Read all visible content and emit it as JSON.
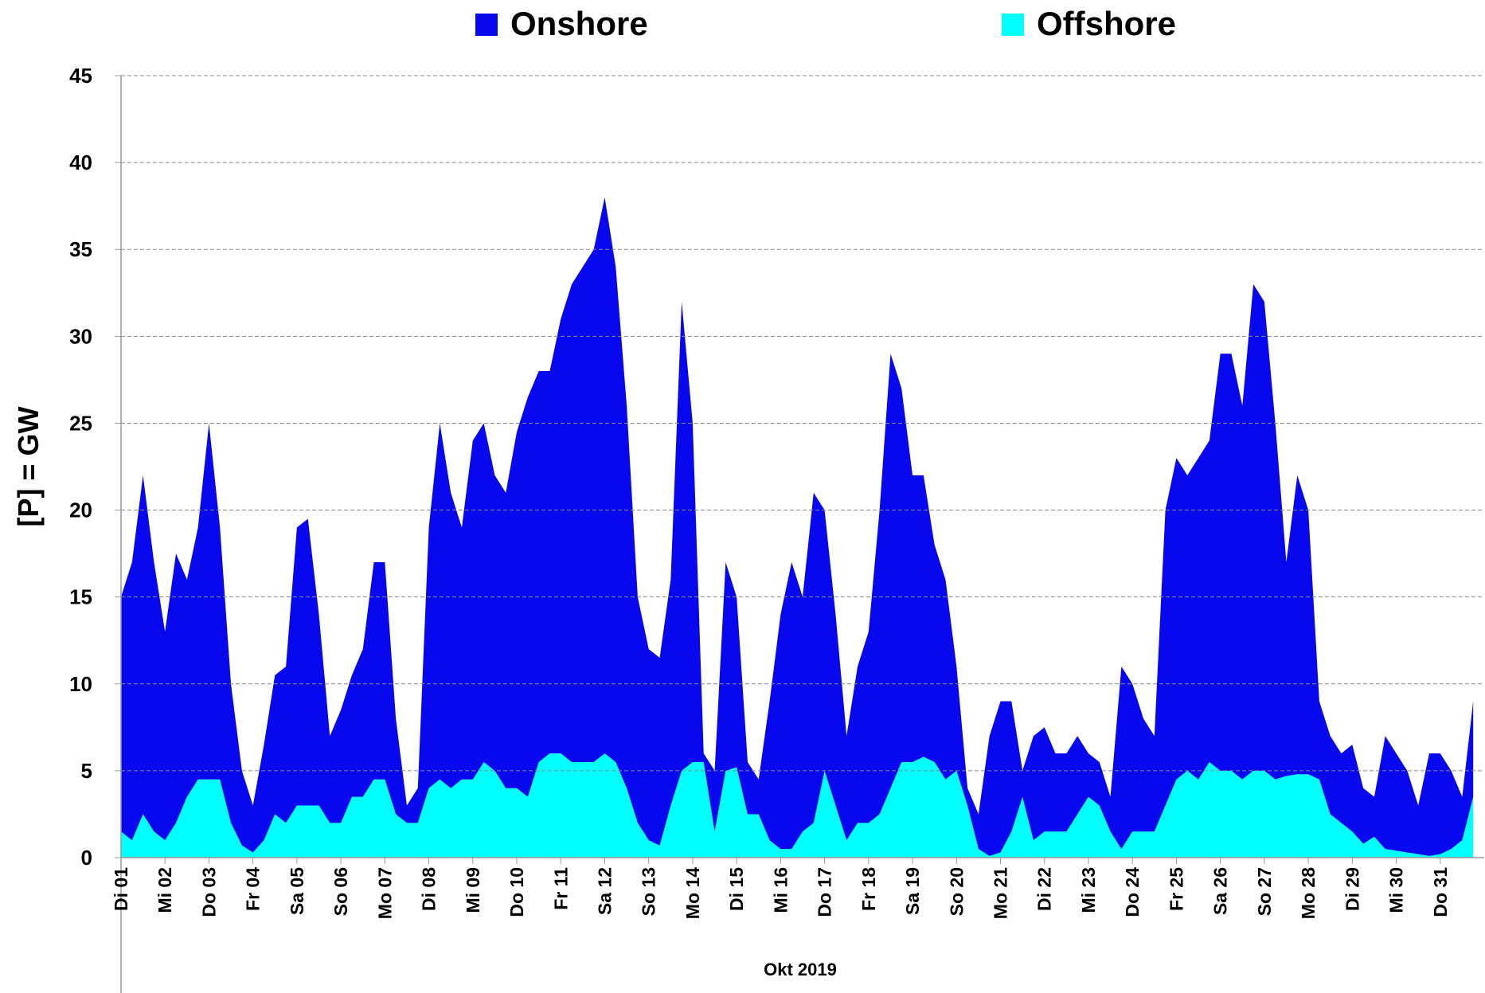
{
  "chart_data": {
    "type": "stacked_area",
    "x_label": "Okt 2019",
    "y_label": "[P] = GW",
    "ylim": [
      0,
      45
    ],
    "yticks": [
      0,
      5,
      10,
      15,
      20,
      25,
      30,
      35,
      40,
      45
    ],
    "grid": true,
    "categories": [
      "Di 01",
      null,
      null,
      null,
      "Mi 02",
      null,
      null,
      null,
      "Do 03",
      null,
      null,
      null,
      "Fr 04",
      null,
      null,
      null,
      "Sa 05",
      null,
      null,
      null,
      "So 06",
      null,
      null,
      null,
      "Mo 07",
      null,
      null,
      null,
      "Di 08",
      null,
      null,
      null,
      "Mi 09",
      null,
      null,
      null,
      "Do 10",
      null,
      null,
      null,
      "Fr 11",
      null,
      null,
      null,
      "Sa 12",
      null,
      null,
      null,
      "So 13",
      null,
      null,
      null,
      "Mo 14",
      null,
      null,
      null,
      "Di 15",
      null,
      null,
      null,
      "Mi 16",
      null,
      null,
      null,
      "Do 17",
      null,
      null,
      null,
      "Fr 18",
      null,
      null,
      null,
      "Sa 19",
      null,
      null,
      null,
      "So 20",
      null,
      null,
      null,
      "Mo 21",
      null,
      null,
      null,
      "Di 22",
      null,
      null,
      null,
      "Mi 23",
      null,
      null,
      null,
      "Do 24",
      null,
      null,
      null,
      "Fr 25",
      null,
      null,
      null,
      "Sa 26",
      null,
      null,
      null,
      "So 27",
      null,
      null,
      null,
      "Mo 28",
      null,
      null,
      null,
      "Di 29",
      null,
      null,
      null,
      "Mi 30",
      null,
      null,
      null,
      "Do 31",
      null,
      null,
      null
    ],
    "series": [
      {
        "name": "Onshore",
        "color": "#0808ee",
        "values": [
          13.5,
          16,
          19.5,
          15.5,
          12,
          15.5,
          12.5,
          14.5,
          20.5,
          14.5,
          8,
          4.3,
          2.7,
          5.5,
          8,
          9,
          16,
          16.5,
          11,
          5,
          6.5,
          7,
          8.5,
          12.5,
          12.5,
          5.5,
          1,
          2,
          15,
          20.5,
          17,
          14.5,
          19.5,
          19.5,
          17,
          17,
          20.5,
          23,
          22.5,
          22,
          25,
          27.5,
          28.5,
          29.5,
          32,
          28.5,
          22,
          13,
          11,
          10.8,
          13,
          27,
          19.5,
          0.5,
          3.5,
          12,
          9.8,
          3,
          2,
          8,
          13.5,
          16.5,
          13.5,
          19,
          15,
          11,
          6,
          9,
          11,
          17.5,
          25,
          21.5,
          16.5,
          16.2,
          12.5,
          11.5,
          6,
          1,
          2,
          6.9,
          8.7,
          7.5,
          1.5,
          6,
          6,
          4.5,
          4.5,
          4.5,
          2.5,
          2.5,
          2,
          10.5,
          8.5,
          6.5,
          5.5,
          17,
          18.5,
          17,
          18.5,
          18.5,
          24,
          24,
          21.5,
          28,
          27,
          20.5,
          12.3,
          17.2,
          15.2,
          4.5,
          4.5,
          4,
          5,
          3.2,
          2.3,
          6.5,
          5.6,
          4.7,
          2.8,
          5.9,
          5.8,
          4.5,
          2.5,
          5.5
        ]
      },
      {
        "name": "Offshore",
        "color": "#00ffff",
        "values": [
          1.5,
          1,
          2.5,
          1.5,
          1,
          2,
          3.5,
          4.5,
          4.5,
          4.5,
          2,
          0.7,
          0.3,
          1,
          2.5,
          2,
          3,
          3,
          3,
          2,
          2,
          3.5,
          3.5,
          4.5,
          4.5,
          2.5,
          2,
          2,
          4,
          4.5,
          4,
          4.5,
          4.5,
          5.5,
          5,
          4,
          4,
          3.5,
          5.5,
          6,
          6,
          5.5,
          5.5,
          5.5,
          6,
          5.5,
          4,
          2,
          1,
          0.7,
          3,
          5,
          5.5,
          5.5,
          1.5,
          5,
          5.2,
          2.5,
          2.5,
          1,
          0.5,
          0.5,
          1.5,
          2,
          5,
          3,
          1,
          2,
          2,
          2.5,
          4,
          5.5,
          5.5,
          5.8,
          5.5,
          4.5,
          5,
          3,
          0.5,
          0.1,
          0.3,
          1.5,
          3.5,
          1,
          1.5,
          1.5,
          1.5,
          2.5,
          3.5,
          3,
          1.5,
          0.5,
          1.5,
          1.5,
          1.5,
          3,
          4.5,
          5,
          4.5,
          5.5,
          5,
          5,
          4.5,
          5,
          5,
          4.5,
          4.7,
          4.8,
          4.8,
          4.5,
          2.5,
          2,
          1.5,
          0.8,
          1.2,
          0.5,
          0.4,
          0.3,
          0.2,
          0.1,
          0.2,
          0.5,
          1,
          3.5
        ]
      }
    ]
  }
}
